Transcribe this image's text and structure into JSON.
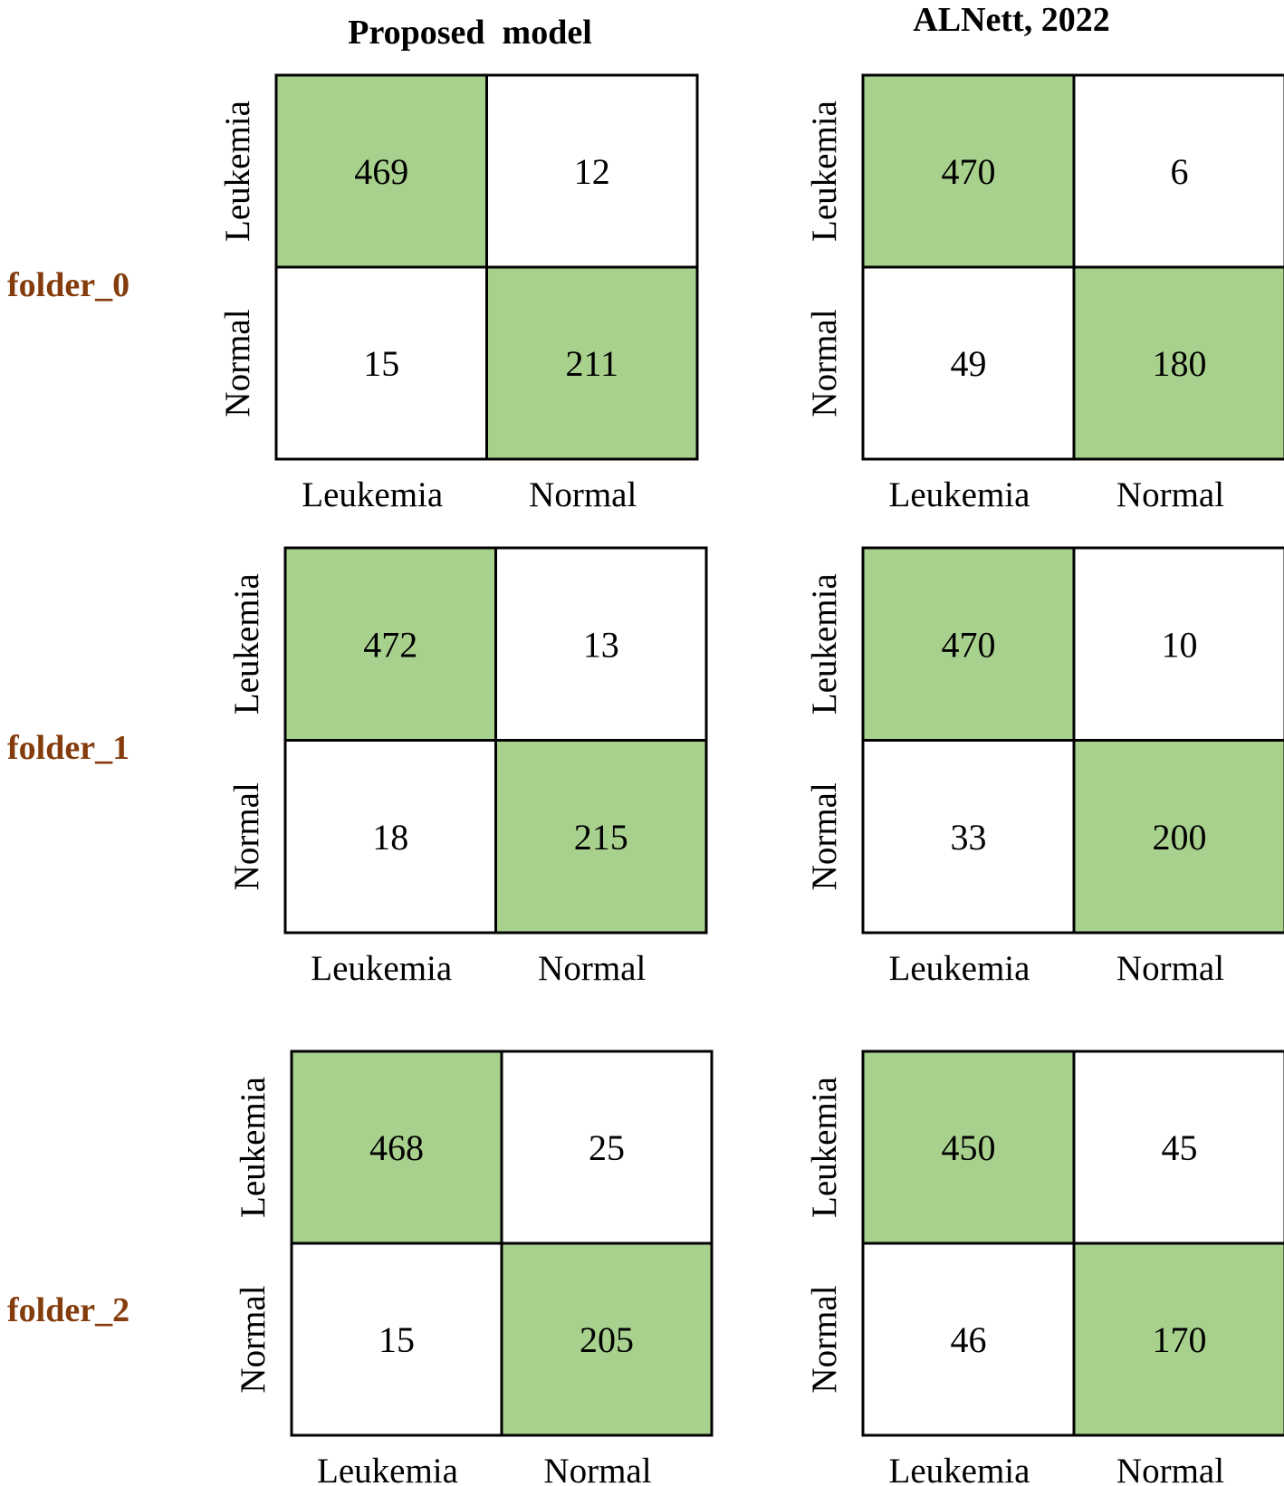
{
  "colors": {
    "diagonal_fill": "#a9d18e",
    "off_diagonal_fill": "#ffffff",
    "border": "#000000",
    "row_label_color": "#843c0c"
  },
  "column_titles": [
    "Proposed  model",
    "ALNett, 2022"
  ],
  "row_labels": [
    "folder_0",
    "folder_1",
    "folder_2"
  ],
  "chart_data": [
    {
      "type": "heatmap",
      "model": "Proposed  model",
      "fold": "folder_0",
      "x_ticks": [
        "Leukemia",
        "Normal"
      ],
      "y_ticks": [
        "Leukemia",
        "Normal"
      ],
      "matrix": [
        [
          469,
          12
        ],
        [
          15,
          211
        ]
      ]
    },
    {
      "type": "heatmap",
      "model": "ALNett, 2022",
      "fold": "folder_0",
      "x_ticks": [
        "Leukemia",
        "Normal"
      ],
      "y_ticks": [
        "Leukemia",
        "Normal"
      ],
      "matrix": [
        [
          470,
          6
        ],
        [
          49,
          180
        ]
      ]
    },
    {
      "type": "heatmap",
      "model": "Proposed  model",
      "fold": "folder_1",
      "x_ticks": [
        "Leukemia",
        "Normal"
      ],
      "y_ticks": [
        "Leukemia",
        "Normal"
      ],
      "matrix": [
        [
          472,
          13
        ],
        [
          18,
          215
        ]
      ]
    },
    {
      "type": "heatmap",
      "model": "ALNett, 2022",
      "fold": "folder_1",
      "x_ticks": [
        "Leukemia",
        "Normal"
      ],
      "y_ticks": [
        "Leukemia",
        "Normal"
      ],
      "matrix": [
        [
          470,
          10
        ],
        [
          33,
          200
        ]
      ]
    },
    {
      "type": "heatmap",
      "model": "Proposed  model",
      "fold": "folder_2",
      "x_ticks": [
        "Leukemia",
        "Normal"
      ],
      "y_ticks": [
        "Leukemia",
        "Normal"
      ],
      "matrix": [
        [
          468,
          25
        ],
        [
          15,
          205
        ]
      ]
    },
    {
      "type": "heatmap",
      "model": "ALNett, 2022",
      "fold": "folder_2",
      "x_ticks": [
        "Leukemia",
        "Normal"
      ],
      "y_ticks": [
        "Leukemia",
        "Normal"
      ],
      "matrix": [
        [
          450,
          45
        ],
        [
          46,
          170
        ]
      ]
    }
  ]
}
